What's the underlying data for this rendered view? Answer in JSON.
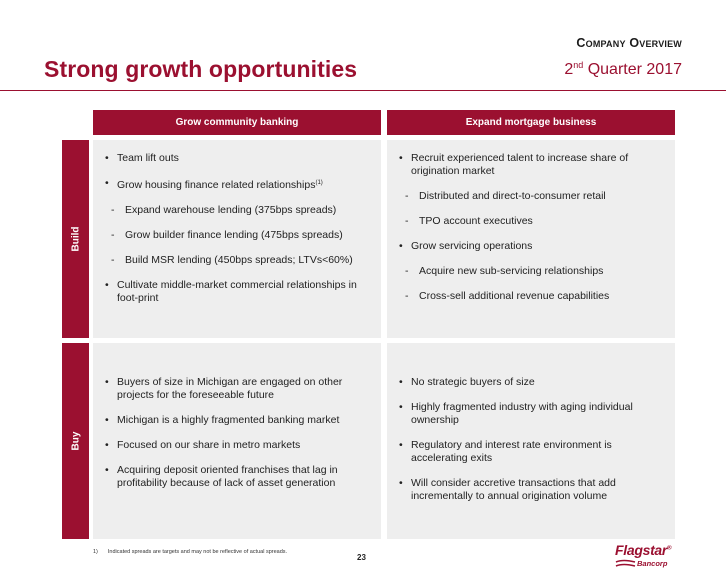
{
  "header": {
    "section": "Company Overview",
    "title": "Strong growth opportunities",
    "quarter_prefix": "2",
    "quarter_sup": "nd",
    "quarter_suffix": " Quarter 2017"
  },
  "columns": [
    "Grow community banking",
    "Expand mortgage business"
  ],
  "rows": [
    "Build",
    "Buy"
  ],
  "build": {
    "community": [
      {
        "type": "bullet",
        "text": "Team lift outs"
      },
      {
        "type": "bullet",
        "text": "Grow housing finance related relationships",
        "sup": "(1)"
      },
      {
        "type": "dash",
        "text": "Expand warehouse lending (375bps spreads)"
      },
      {
        "type": "dash",
        "text": "Grow builder finance lending (475bps spreads)"
      },
      {
        "type": "dash",
        "text": "Build MSR lending (450bps spreads;  LTVs<60%)"
      },
      {
        "type": "bullet",
        "text": "Cultivate middle-market commercial relationships in foot-print"
      }
    ],
    "mortgage": [
      {
        "type": "bullet",
        "text": "Recruit experienced talent to increase share of origination market"
      },
      {
        "type": "dash",
        "text": "Distributed and direct-to-consumer retail"
      },
      {
        "type": "dash",
        "text": "TPO account executives"
      },
      {
        "type": "bullet",
        "text": "Grow servicing operations"
      },
      {
        "type": "dash",
        "text": "Acquire new sub-servicing relationships"
      },
      {
        "type": "dash",
        "text": "Cross-sell additional revenue capabilities"
      }
    ]
  },
  "buy": {
    "community": [
      {
        "type": "bullet",
        "text": "Buyers of size in Michigan are engaged on other projects for the foreseeable future"
      },
      {
        "type": "bullet",
        "text": "Michigan is a highly fragmented banking market"
      },
      {
        "type": "bullet",
        "text": "Focused on our share in metro markets"
      },
      {
        "type": "bullet",
        "text": "Acquiring deposit oriented franchises that lag in profitability because of lack of asset generation"
      }
    ],
    "mortgage": [
      {
        "type": "bullet",
        "text": "No strategic buyers of size"
      },
      {
        "type": "bullet",
        "text": "Highly fragmented industry with aging individual ownership"
      },
      {
        "type": "bullet",
        "text": "Regulatory and interest rate environment is accelerating exits"
      },
      {
        "type": "bullet",
        "text": "Will consider accretive transactions that add incrementally to annual origination volume"
      }
    ]
  },
  "footnote": {
    "number": "1)",
    "text": "Indicated spreads are targets and may not be reflective of actual spreads."
  },
  "page_number": "23",
  "logo": {
    "name": "Flagstar",
    "mark": "®",
    "sub": "Bancorp"
  },
  "colors": {
    "brand": "#9b1030",
    "cell_bg": "#eeeeee"
  }
}
